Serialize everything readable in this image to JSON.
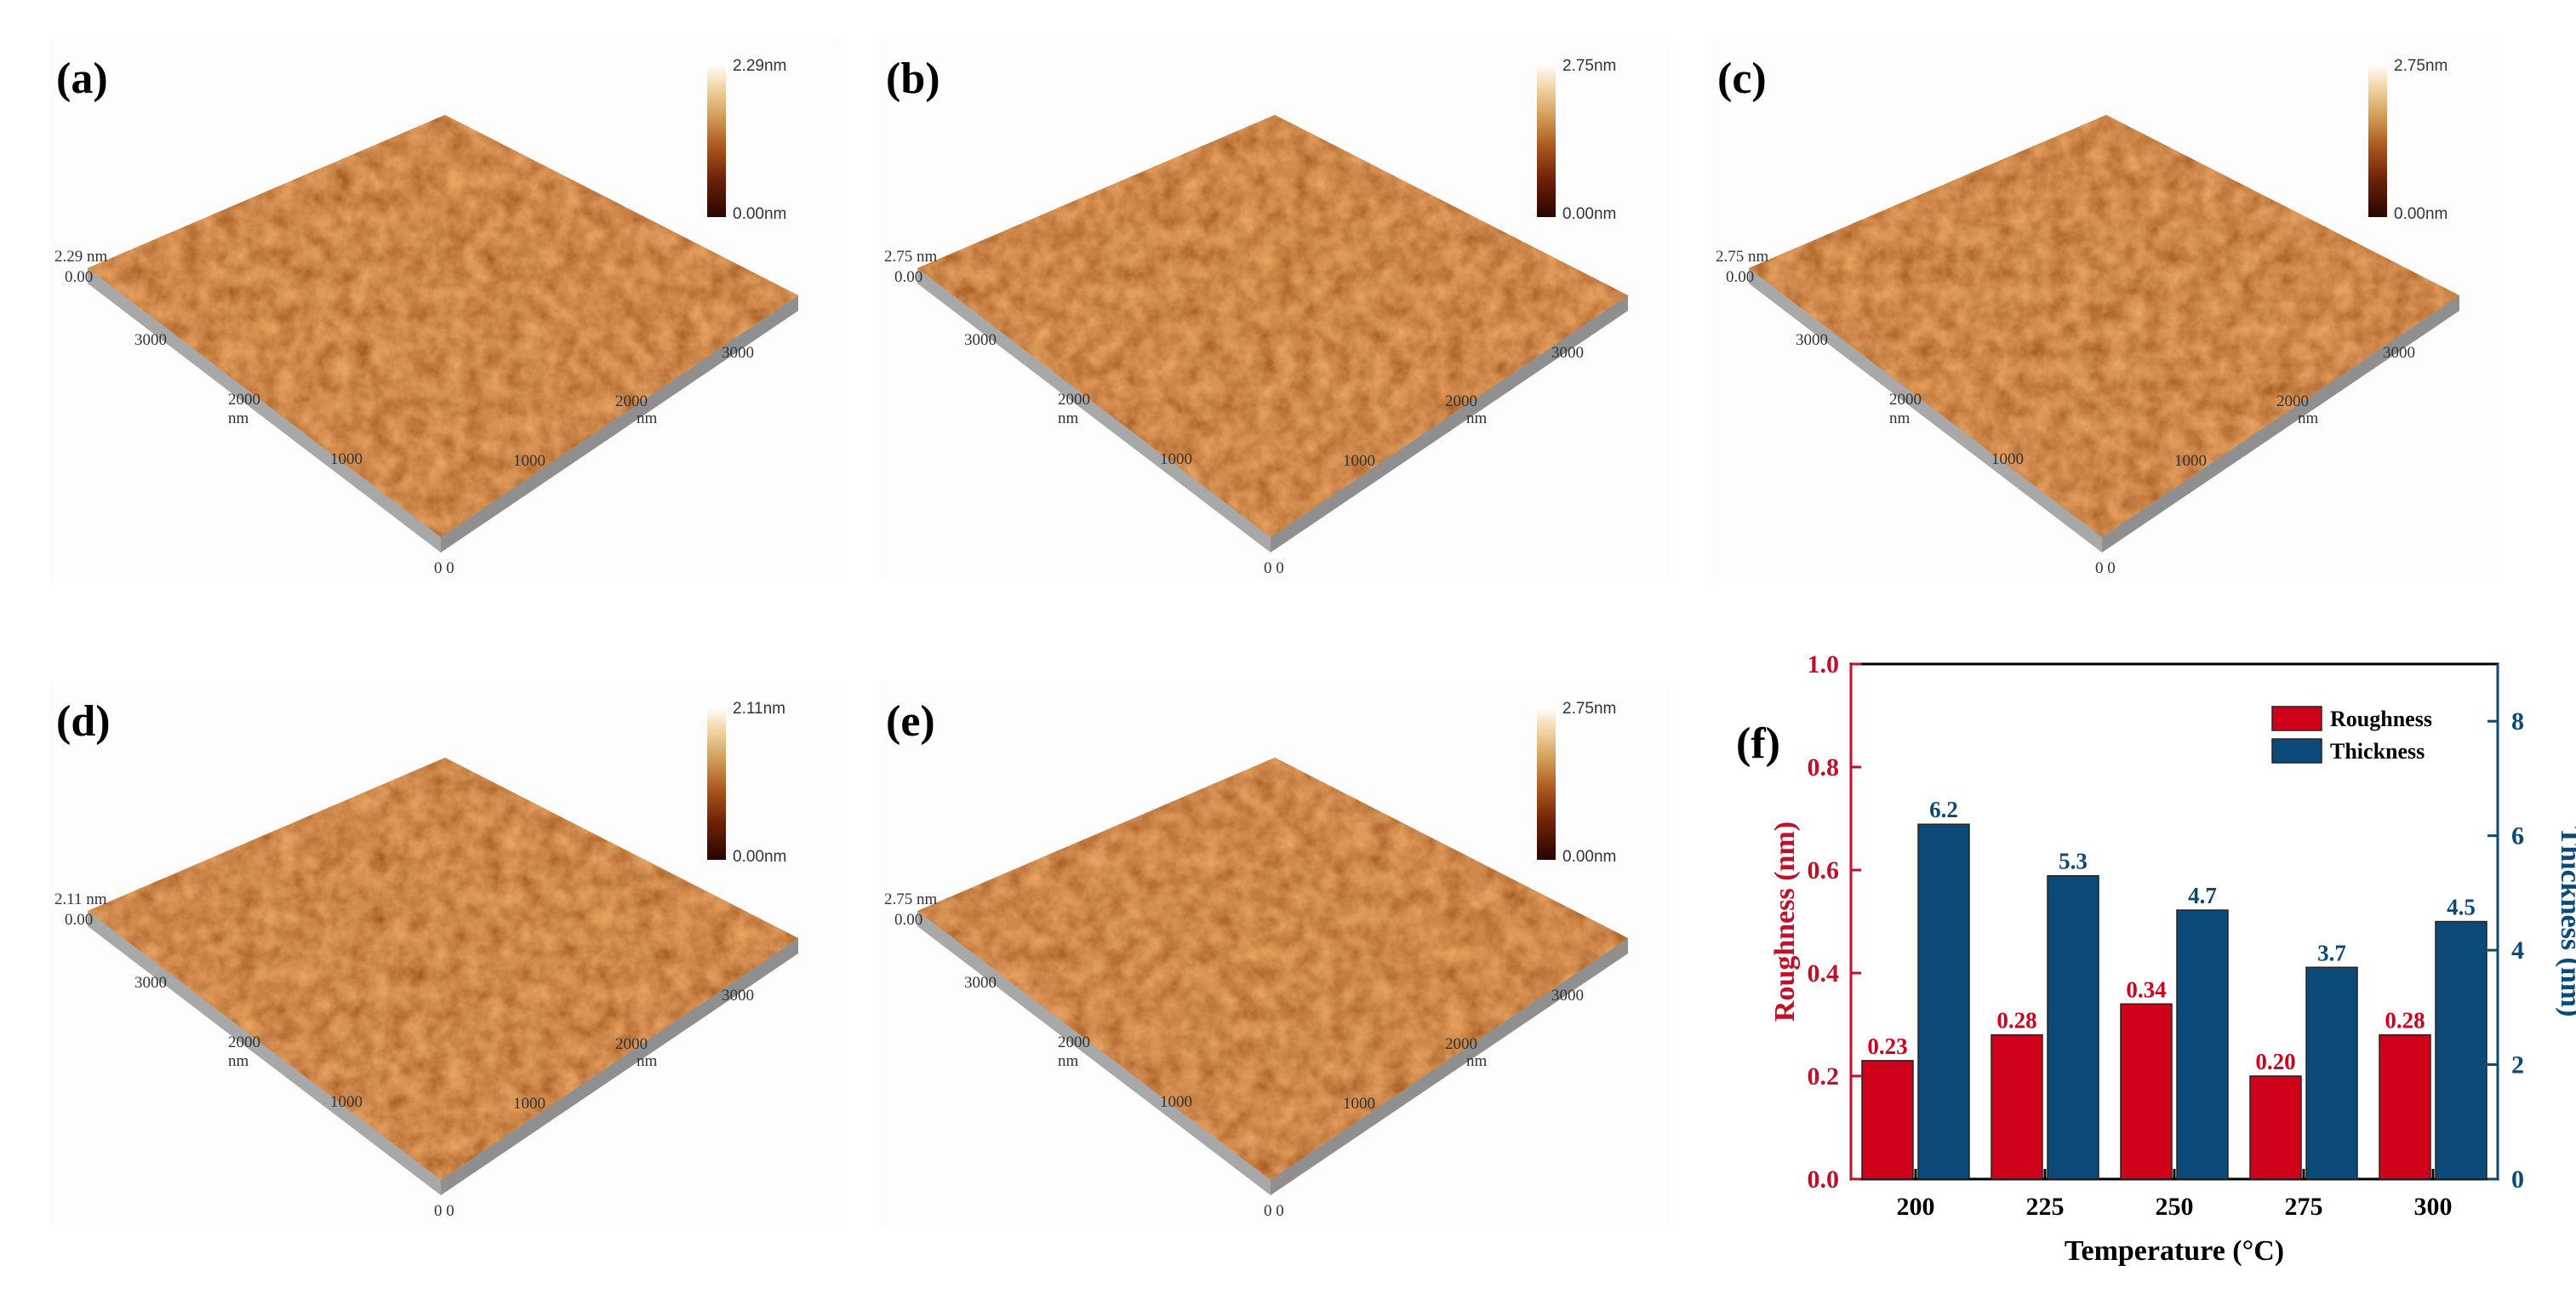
{
  "panels": [
    {
      "label": "(a)",
      "cb_max": "2.29nm",
      "cb_min": "0.00nm",
      "z_max": "2.29 nm",
      "z_min": "0.00"
    },
    {
      "label": "(b)",
      "cb_max": "2.75nm",
      "cb_min": "0.00nm",
      "z_max": "2.75 nm",
      "z_min": "0.00"
    },
    {
      "label": "(c)",
      "cb_max": "2.75nm",
      "cb_min": "0.00nm",
      "z_max": "2.75 nm",
      "z_min": "0.00"
    },
    {
      "label": "(d)",
      "cb_max": "2.11nm",
      "cb_min": "0.00nm",
      "z_max": "2.11 nm",
      "z_min": "0.00"
    },
    {
      "label": "(e)",
      "cb_max": "2.75nm",
      "cb_min": "0.00nm",
      "z_max": "2.75 nm",
      "z_min": "0.00"
    }
  ],
  "afm_axes": {
    "left_ticks": [
      "3000",
      "2000",
      "1000"
    ],
    "right_ticks": [
      "3000",
      "2000",
      "1000"
    ],
    "unit": "nm",
    "origin": "0 0"
  },
  "chart_data": {
    "type": "bar",
    "panel_label": "(f)",
    "categories": [
      "200",
      "225",
      "250",
      "275",
      "300"
    ],
    "series": [
      {
        "name": "Roughness",
        "axis": "left",
        "values": [
          0.23,
          0.28,
          0.34,
          0.2,
          0.28
        ],
        "labels": [
          "0.23",
          "0.28",
          "0.34",
          "0.20",
          "0.28"
        ],
        "color": "#d0021b"
      },
      {
        "name": "Thickness",
        "axis": "right",
        "values": [
          6.2,
          5.3,
          4.7,
          3.7,
          4.5
        ],
        "labels": [
          "6.2",
          "5.3",
          "4.7",
          "3.7",
          "4.5"
        ],
        "color": "#0b4a78"
      }
    ],
    "xlabel": "Temperature (°C)",
    "ylabel_left": "Roughness (nm)",
    "ylabel_right": "Thickness (nm)",
    "ylim_left": [
      0,
      1.0
    ],
    "ylim_right": [
      0,
      9
    ],
    "yticks_left": [
      "0.0",
      "0.2",
      "0.4",
      "0.6",
      "0.8",
      "1.0"
    ],
    "yticks_right": [
      "0",
      "2",
      "4",
      "6",
      "8"
    ],
    "legend_position": "top-right",
    "left_axis_color": "#c0102a",
    "right_axis_color": "#0b4a78"
  }
}
